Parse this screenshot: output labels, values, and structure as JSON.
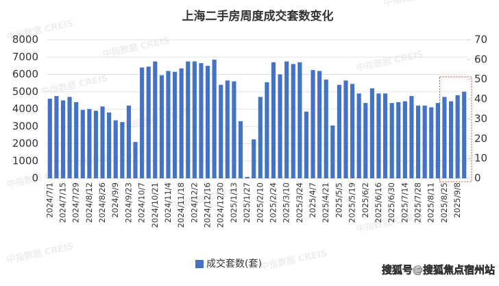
{
  "chart_data": {
    "type": "bar",
    "title": "上海二手房周度成交套数变化",
    "categories": [
      "2024/7/1",
      null,
      "2024/7/15",
      null,
      "2024/7/29",
      null,
      "2024/8/12",
      null,
      "2024/8/26",
      null,
      "2024/9/9",
      null,
      "2024/9/23",
      null,
      "2024/10/7",
      null,
      "2024/10/21",
      null,
      "2024/11/4",
      null,
      "2024/11/18",
      null,
      "2024/12/2",
      null,
      "2024/12/16",
      null,
      "2024/12/30",
      null,
      "2025/1/13",
      null,
      "2025/1/27",
      null,
      "2025/2/10",
      null,
      "2025/2/24",
      null,
      "2025/3/10",
      null,
      "2025/3/24",
      null,
      "2025/4/7",
      null,
      "2025/4/21",
      null,
      "2025/5/5",
      null,
      "2025/5/19",
      null,
      "2025/6/2",
      null,
      "2025/6/16",
      null,
      "2025/6/30",
      null,
      "2025/7/14",
      null,
      "2025/7/28",
      null,
      "2025/8/11",
      null,
      "2025/8/25",
      null,
      "2025/9/8",
      null
    ],
    "series": [
      {
        "name": "成交套数(套)",
        "color": "#4472c4",
        "values": [
          4600,
          4750,
          4500,
          4700,
          4400,
          3950,
          4000,
          3900,
          4150,
          3800,
          3350,
          3250,
          4200,
          2100,
          6400,
          6450,
          6750,
          5950,
          6200,
          6150,
          6350,
          6750,
          6750,
          6650,
          6500,
          6850,
          5400,
          5650,
          5600,
          3300,
          80,
          2250,
          4700,
          5550,
          6700,
          6000,
          6750,
          6600,
          6700,
          3850,
          6250,
          6200,
          5700,
          3050,
          5400,
          5650,
          5450,
          4900,
          4350,
          5200,
          4900,
          4900,
          4350,
          4400,
          4450,
          4750,
          4200,
          4200,
          4100,
          4350,
          4700,
          4450,
          4800,
          5000
        ]
      }
    ],
    "ylim": [
      0,
      8000
    ],
    "yticks": [
      0,
      1000,
      2000,
      3000,
      4000,
      5000,
      6000,
      7000,
      8000
    ],
    "y2lim": [
      0,
      70
    ],
    "y2ticks": [
      0,
      10,
      20,
      30,
      40,
      50,
      60,
      70
    ],
    "grid": true,
    "legend": "bottom",
    "watermark": "中指数据 CREIS",
    "source": "搜狐号@搜狐焦点宿州站"
  }
}
